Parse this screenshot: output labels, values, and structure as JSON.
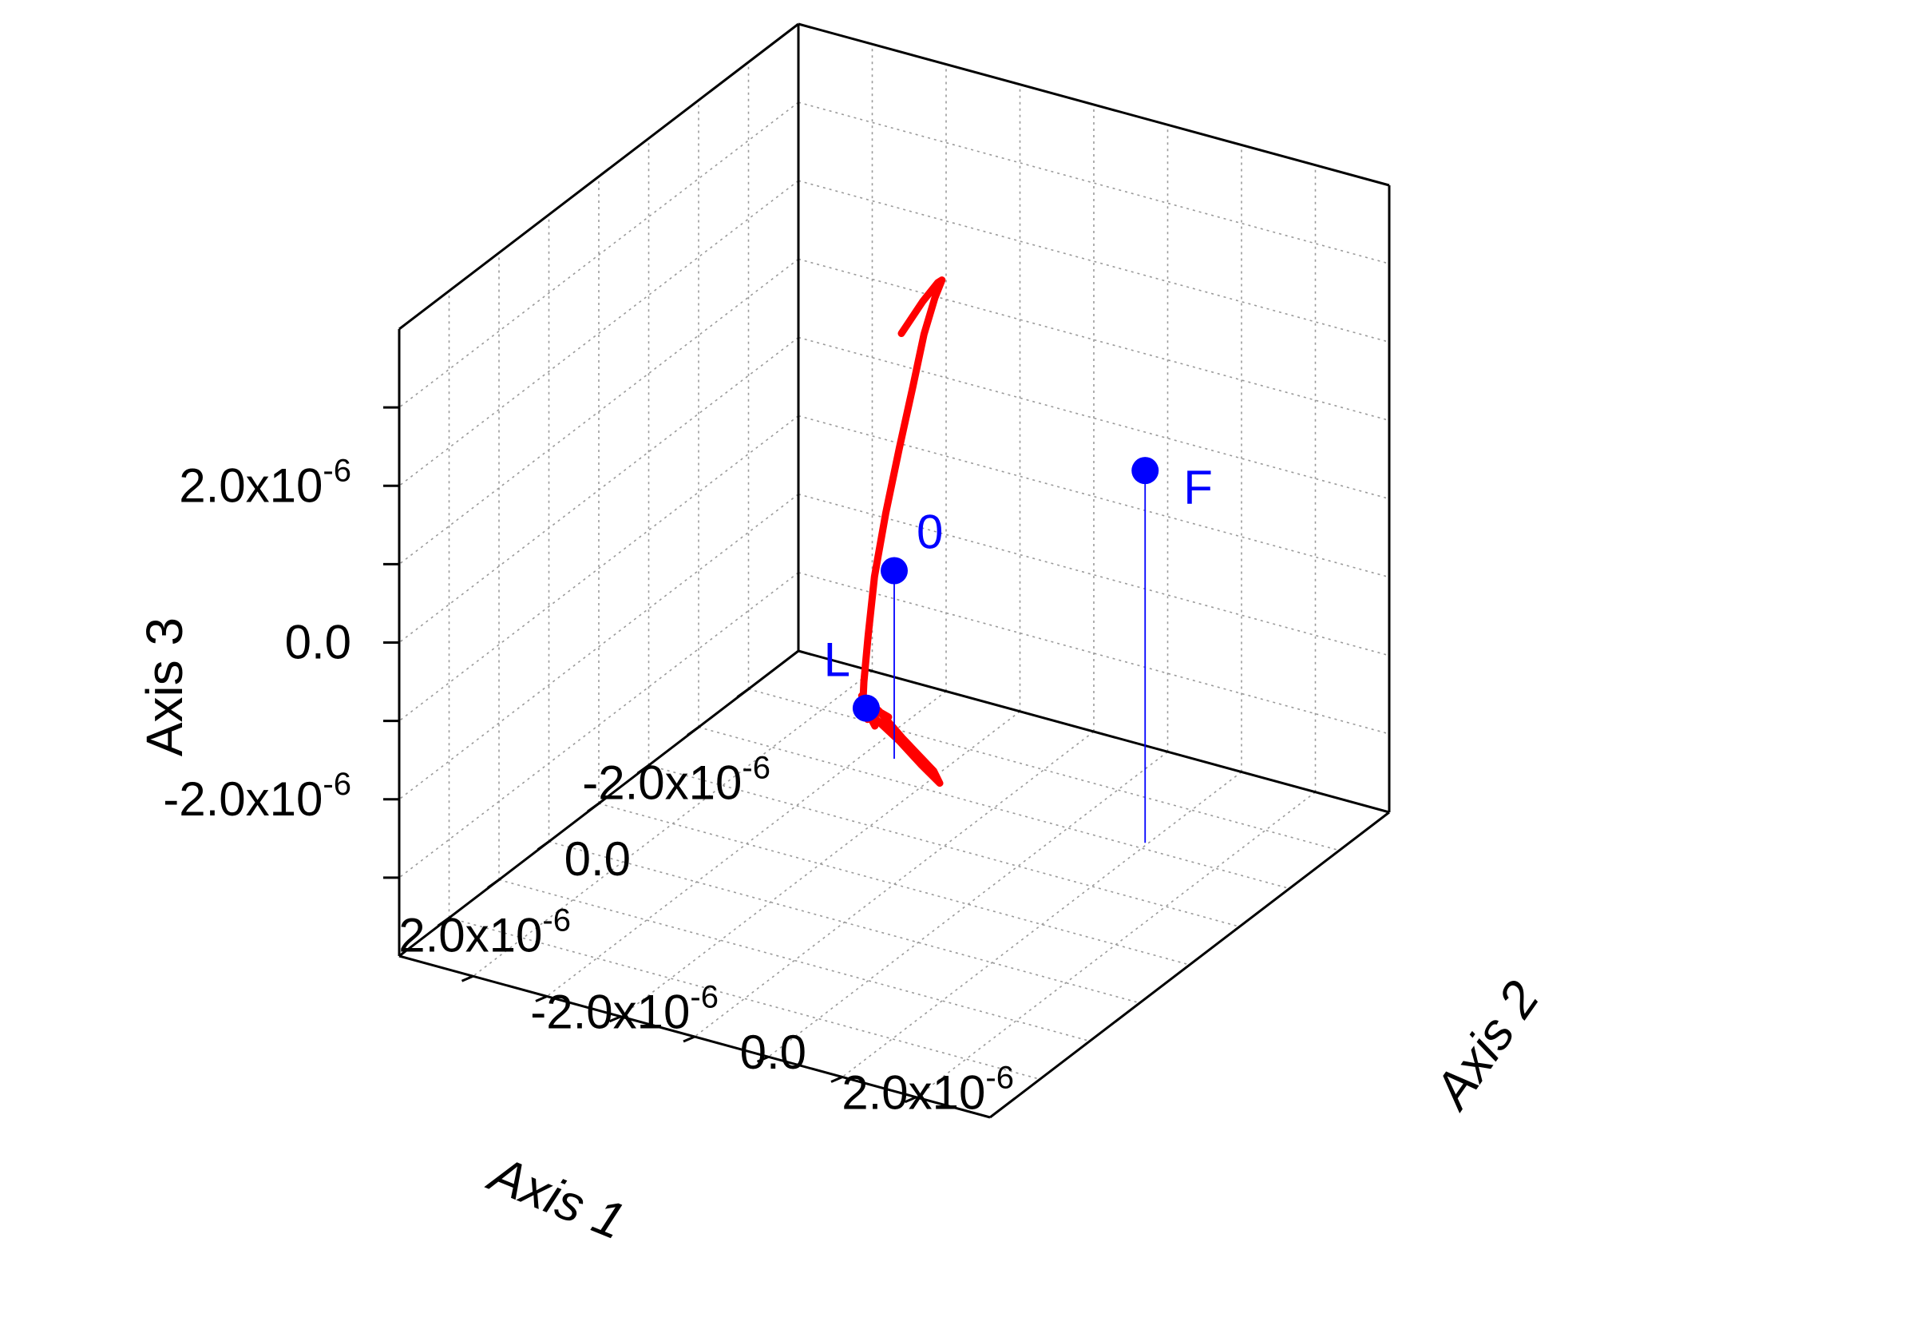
{
  "chart_data": {
    "type": "scatter3d",
    "axes": {
      "x": {
        "label": "Axis 1",
        "ticks": [
          {
            "value": -2e-06,
            "mant": "-2.0x10",
            "exp": "-6"
          },
          {
            "value": 0,
            "mant": "0.0",
            "exp": ""
          },
          {
            "value": 2e-06,
            "mant": "2.0x10",
            "exp": "-6"
          }
        ]
      },
      "y": {
        "label": "Axis 2",
        "ticks": [
          {
            "value": -2e-06,
            "mant": "-2.0x10",
            "exp": "-6"
          },
          {
            "value": 0,
            "mant": "0.0",
            "exp": ""
          },
          {
            "value": 2e-06,
            "mant": "2.0x10",
            "exp": "-6"
          }
        ]
      },
      "z": {
        "label": "Axis 3",
        "ticks": [
          {
            "value": -2e-06,
            "mant": "-2.0x10",
            "exp": "-6"
          },
          {
            "value": 0,
            "mant": "0.0",
            "exp": ""
          },
          {
            "value": 2e-06,
            "mant": "2.0x10",
            "exp": "-6"
          }
        ]
      }
    },
    "grid": true,
    "series": [
      {
        "kind": "trajectory",
        "color": "#ff0000",
        "points": [
          [
            3e-07,
            3e-07,
            3.25e-06
          ],
          [
            -2e-07,
            2.5e-07,
            3.4e-06
          ],
          [
            -8e-07,
            5e-08,
            3.3e-06
          ],
          [
            -1.4e-06,
            -3e-07,
            2.95e-06
          ],
          [
            -1.85e-06,
            -7e-07,
            2.4e-06
          ],
          [
            -2.15e-06,
            -1.05e-06,
            1.7e-06
          ],
          [
            -2.3e-06,
            -1.3e-06,
            9e-07
          ],
          [
            -2.25e-06,
            -1.45e-06,
            1e-07
          ],
          [
            -2.05e-06,
            -1.5e-06,
            -6.5e-07
          ],
          [
            -1.75e-06,
            -1.45e-06,
            -1.3e-06
          ],
          [
            -1.4e-06,
            -1.3e-06,
            -1.85e-06
          ],
          [
            -1.05e-06,
            -1.12e-06,
            -2.22e-06
          ],
          [
            -8.5e-07,
            -1e-06,
            -2.4e-06
          ],
          [
            -6.5e-07,
            -8e-07,
            -2.42e-06
          ],
          [
            -9.5e-07,
            -9.5e-07,
            -2.45e-06
          ],
          [
            -5e-07,
            -6e-07,
            -2.38e-06
          ],
          [
            -8.5e-07,
            -9.5e-07,
            -2.44e-06
          ],
          [
            -4e-07,
            -2e-07,
            -2.42e-06
          ],
          [
            -1e-07,
            3e-07,
            -2.45e-06
          ],
          [
            5e-08,
            6.5e-07,
            -2.52e-06
          ],
          [
            -2e-07,
            4e-07,
            -2.55e-06
          ],
          [
            -6e-07,
            -3e-07,
            -2.5e-06
          ],
          [
            -9.5e-07,
            -8.5e-07,
            -2.47e-06
          ],
          [
            -1.2e-06,
            -1.25e-06,
            -2.5e-06
          ],
          [
            -9e-07,
            -9.5e-07,
            -2.44e-06
          ],
          [
            -7e-07,
            -5.5e-07,
            -2.35e-06
          ],
          [
            -9e-07,
            -9e-07,
            -2.42e-06
          ]
        ]
      },
      {
        "kind": "points",
        "color": "#0000ff",
        "drop_lines": true,
        "points": [
          {
            "label": "0",
            "x": 0,
            "y": 0,
            "z": 0
          },
          {
            "label": "F",
            "x": 3e-07,
            "y": 3.6e-06,
            "z": 2.35e-06
          },
          {
            "label": "L",
            "x": -8.6e-07,
            "y": -9.6e-07,
            "z": -2.42e-06
          }
        ]
      }
    ]
  }
}
